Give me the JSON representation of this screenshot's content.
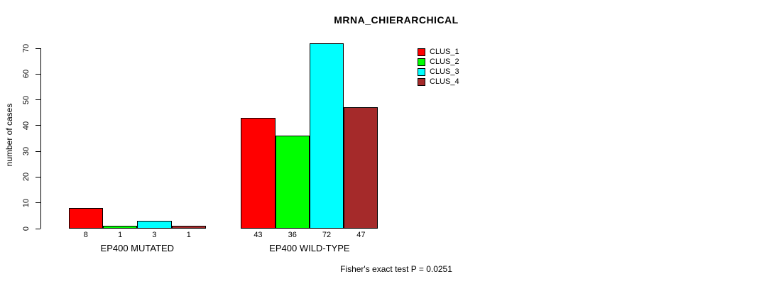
{
  "title": "MRNA_CHIERARCHICAL",
  "footer": "Fisher's exact test P = 0.0251",
  "chart_data": {
    "type": "bar",
    "title": "MRNA_CHIERARCHICAL",
    "xlabel": "",
    "ylabel": "number of cases",
    "ylim": [
      0,
      70
    ],
    "yticks": [
      0,
      10,
      20,
      30,
      40,
      50,
      60,
      70
    ],
    "grid": false,
    "legend_position": "top-right",
    "categories": [
      "EP400 MUTATED",
      "EP400 WILD-TYPE"
    ],
    "series": [
      {
        "name": "CLUS_1",
        "color": "#ff0000",
        "values": [
          8,
          43
        ]
      },
      {
        "name": "CLUS_2",
        "color": "#00ff00",
        "values": [
          1,
          36
        ]
      },
      {
        "name": "CLUS_3",
        "color": "#00ffff",
        "values": [
          3,
          72
        ]
      },
      {
        "name": "CLUS_4",
        "color": "#a52a2a",
        "values": [
          1,
          47
        ]
      }
    ],
    "bar_value_labels": [
      [
        8,
        1,
        3,
        1
      ],
      [
        43,
        36,
        72,
        47
      ]
    ],
    "annotation": "Fisher's exact test P = 0.0251"
  }
}
